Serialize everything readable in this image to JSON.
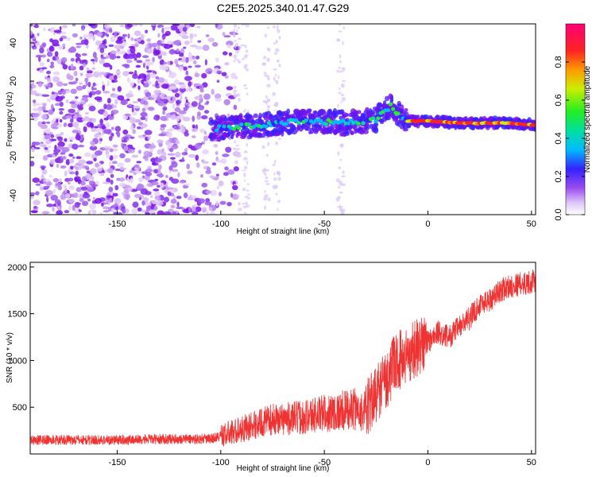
{
  "chart_data": [
    {
      "type": "heatmap",
      "title": "C2E5.2025.340.01.47.G29",
      "xlabel": "Height of straight line (km)",
      "ylabel": "Frequency (Hz)",
      "xlim": [
        -192,
        52
      ],
      "ylim": [
        -50,
        50
      ],
      "xticks": [
        -150,
        -100,
        -50,
        0,
        50
      ],
      "yticks": [
        -40,
        -20,
        0,
        20,
        40
      ],
      "colorbar": {
        "label": "Normalized spectral amplitude",
        "range": [
          0.0,
          1.0
        ],
        "ticks": [
          0.0,
          0.2,
          0.4,
          0.6,
          0.8
        ],
        "tick_labels": [
          "0.0",
          "0.2",
          "0.4",
          "0.6",
          "0.8"
        ]
      },
      "features": {
        "noise_region_km": [
          -192,
          -100
        ],
        "signal_onset_km": -105,
        "ridge": [
          {
            "x": -105,
            "y": -5
          },
          {
            "x": -80,
            "y": -3
          },
          {
            "x": -60,
            "y": -1
          },
          {
            "x": -40,
            "y": -2
          },
          {
            "x": -25,
            "y": 0
          },
          {
            "x": -18,
            "y": 7
          },
          {
            "x": -10,
            "y": -1
          },
          {
            "x": 0,
            "y": -1
          },
          {
            "x": 20,
            "y": -2
          },
          {
            "x": 40,
            "y": -2
          },
          {
            "x": 52,
            "y": -3
          }
        ]
      }
    },
    {
      "type": "line",
      "xlabel": "Height of straight line (km)",
      "ylabel": "SNR (10 * v/v)",
      "xlim": [
        -192,
        52
      ],
      "ylim": [
        0,
        2050
      ],
      "xticks": [
        -150,
        -100,
        -50,
        0,
        50
      ],
      "yticks": [
        500,
        1000,
        1500,
        2000
      ],
      "color": "#ee3333",
      "series": [
        {
          "name": "SNR",
          "x": [
            -192,
            -175,
            -150,
            -125,
            -105,
            -95,
            -85,
            -75,
            -65,
            -55,
            -45,
            -35,
            -30,
            -25,
            -20,
            -15,
            -10,
            -5,
            0,
            5,
            10,
            15,
            20,
            25,
            30,
            35,
            40,
            45,
            52
          ],
          "y": [
            150,
            150,
            150,
            160,
            160,
            230,
            300,
            370,
            380,
            420,
            450,
            480,
            450,
            650,
            800,
            1000,
            1050,
            1150,
            1200,
            1300,
            1250,
            1350,
            1450,
            1600,
            1650,
            1750,
            1800,
            1820,
            1850
          ]
        }
      ]
    }
  ]
}
